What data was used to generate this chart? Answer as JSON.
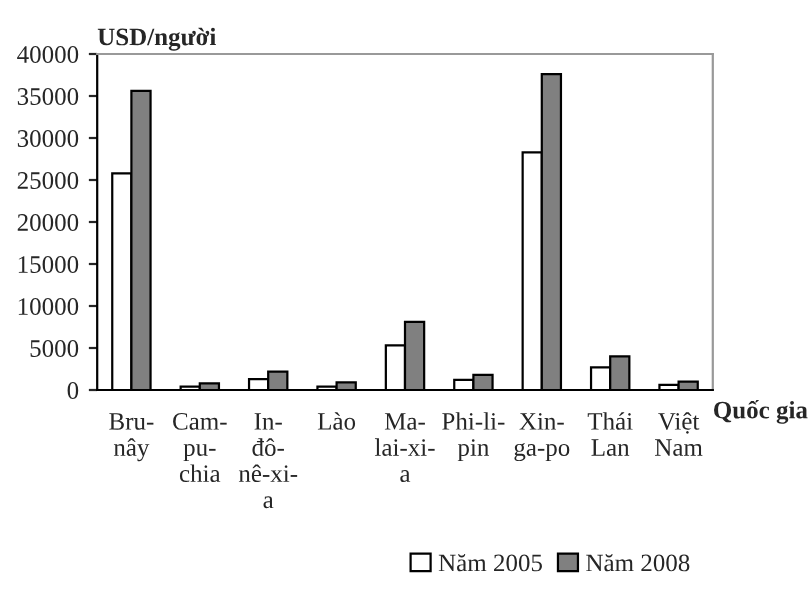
{
  "chart_data": {
    "type": "bar",
    "ylabel": "USD/người",
    "xlabel": "Quốc gia",
    "categories": [
      "Bru-\nnây",
      "Cam-\npu-\nchia",
      "In-\nđô-\nnê-xi-\na",
      "Lào",
      "Ma-\nlai-xi-\na",
      "Phi-li-\npin",
      "Xin-\nga-po",
      "Thái\nLan",
      "Việt\nNam"
    ],
    "series": [
      {
        "name": "Năm 2005",
        "color": "#ffffff",
        "values": [
          25800,
          400,
          1300,
          400,
          5300,
          1200,
          28300,
          2700,
          600
        ]
      },
      {
        "name": "Năm 2008",
        "color": "#808080",
        "values": [
          35600,
          800,
          2200,
          900,
          8100,
          1800,
          37600,
          4000,
          1000
        ]
      }
    ],
    "ylim": [
      0,
      40000
    ],
    "yticks": [
      0,
      5000,
      10000,
      15000,
      20000,
      25000,
      30000,
      35000,
      40000
    ],
    "grid": false,
    "legend": "bottom right"
  }
}
